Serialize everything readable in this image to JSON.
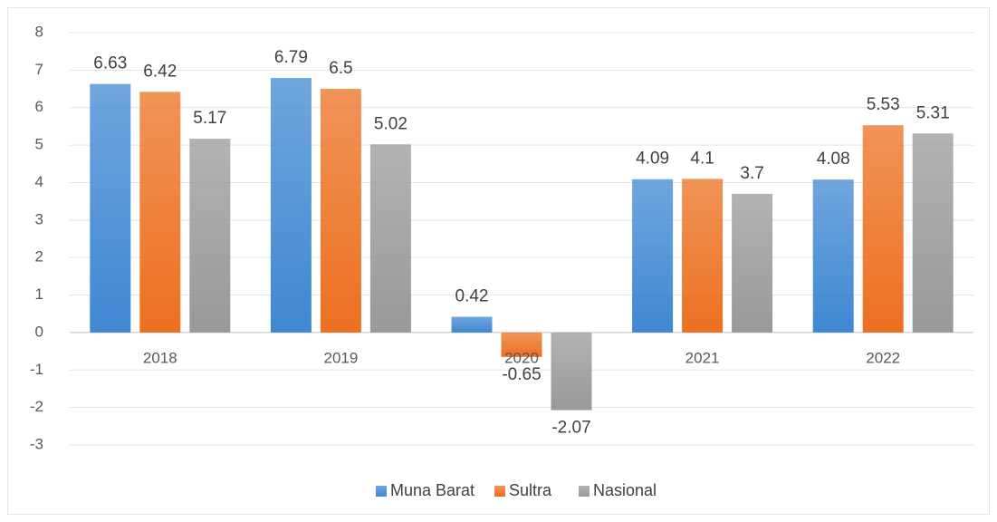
{
  "chart_data": {
    "type": "bar",
    "categories": [
      "2018",
      "2019",
      "2020",
      "2021",
      "2022"
    ],
    "series": [
      {
        "name": "Muna Barat",
        "color": "#3f88d2",
        "values": [
          6.63,
          6.79,
          0.42,
          4.09,
          4.08
        ]
      },
      {
        "name": "Sultra",
        "color": "#ec7020",
        "values": [
          6.42,
          6.5,
          -0.65,
          4.1,
          5.53
        ]
      },
      {
        "name": "Nasional",
        "color": "#999999",
        "values": [
          5.17,
          5.02,
          -2.07,
          3.7,
          5.31
        ]
      }
    ],
    "ylim": [
      -3,
      8
    ],
    "yticks": [
      -3,
      -2,
      -1,
      0,
      1,
      2,
      3,
      4,
      5,
      6,
      7,
      8
    ],
    "grid": true,
    "legend": "bottom"
  }
}
